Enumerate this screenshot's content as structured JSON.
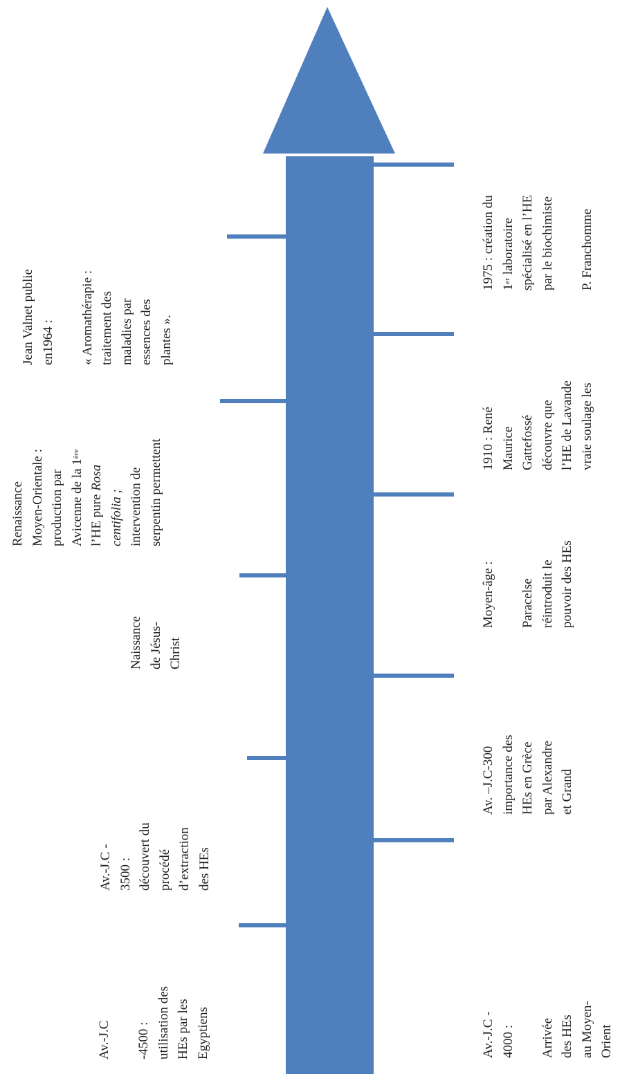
{
  "colors": {
    "arrow": "#4f7fbd",
    "text": "#222222",
    "background": "#ffffff"
  },
  "events": {
    "e1": {
      "era": "Av.-J.C",
      "year": "-4500 :",
      "l1": "utilisation des",
      "l2": "HEs par les",
      "l3": "Egyptiens"
    },
    "e2": {
      "l1": "Av.-J.C -",
      "l2": "4000 :",
      "l3": "Arrivée",
      "l4": "des HEs",
      "l5": "au Moyen-",
      "l6": "Orient"
    },
    "e3": {
      "l1": "Av.-J.C -",
      "l2": "3500 :",
      "l3": "découvert du",
      "l4": "procédé",
      "l5": "d’extraction",
      "l6": "des HEs"
    },
    "e4": {
      "l1": "Av. –J.C-300",
      "l2": "importance des",
      "l3": "HEs en Grèce",
      "l4": "par Alexandre",
      "l5": "et Grand"
    },
    "e5": {
      "l1": "Naissance",
      "l2": "de Jésus-",
      "l3": "Christ"
    },
    "e6": {
      "l1": "Moyen-âge :",
      "l2": "Paracelse",
      "l3": "réintroduit  le",
      "l4": "pouvoir des HEs"
    },
    "e7": {
      "l1": "Renaissance",
      "l2": "Moyen-Orientale :",
      "l3": "production par",
      "l4": "Avicenne de la 1",
      "l4_sup": "ère",
      "l5": "l’HE pure",
      "l5_it": "Rosa",
      "l6_it": "centifolia ;",
      "l7": "intervention de",
      "l8": "serpentin permettent"
    },
    "e8": {
      "l1": "1910 : René",
      "l2": "Maurice",
      "l3": "Gattefossé",
      "l4": "découvre que",
      "l5": "l’HE de Lavande",
      "l6": "vraie  soulage les"
    },
    "e9": {
      "l1": "Jean Valnet publie",
      "l2": "en1964 :",
      "l3": "« Aromathérapie :",
      "l4": "traitement des",
      "l5": "maladies par",
      "l6": "essences des",
      "l7": "plantes »."
    },
    "e10": {
      "l1": "1975 : création du",
      "l2": "1",
      "l2_sup": "er",
      "l2_rest": " laboratoire",
      "l3": "spécialisé en l’HE",
      "l4": "par le biochimiste",
      "l5": "P. Franchomme"
    }
  }
}
